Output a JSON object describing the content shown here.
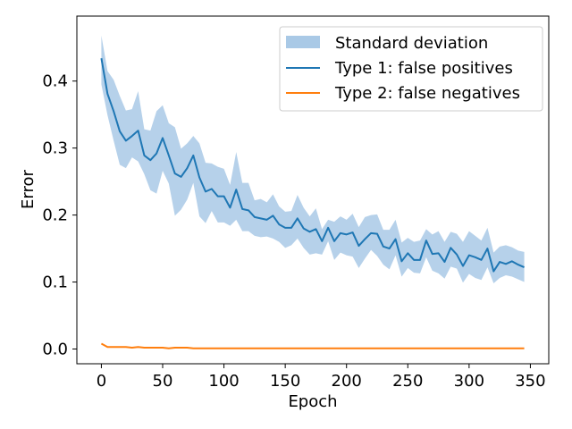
{
  "chart_data": {
    "type": "line",
    "xlabel": "Epoch",
    "ylabel": "Error",
    "xlim": [
      -20,
      365
    ],
    "ylim": [
      -0.022,
      0.497
    ],
    "xticks": [
      0,
      50,
      100,
      150,
      200,
      250,
      300,
      350
    ],
    "yticks": [
      0.0,
      0.1,
      0.2,
      0.3,
      0.4
    ],
    "grid": false,
    "legend_position": "top-right",
    "legend": {
      "band": "Standard deviation",
      "type1": "Type 1: false positives",
      "type2": "Type 2: false negatives"
    },
    "colors": {
      "type1": "#1f77b4",
      "type2": "#ff7f0e",
      "band": "#a9c9e6"
    },
    "x": [
      0,
      5,
      10,
      15,
      20,
      25,
      30,
      35,
      40,
      45,
      50,
      55,
      60,
      65,
      70,
      75,
      80,
      85,
      90,
      95,
      100,
      105,
      110,
      115,
      120,
      125,
      130,
      135,
      140,
      145,
      150,
      155,
      160,
      165,
      170,
      175,
      180,
      185,
      190,
      195,
      200,
      205,
      210,
      215,
      220,
      225,
      230,
      235,
      240,
      245,
      250,
      255,
      260,
      265,
      270,
      275,
      280,
      285,
      290,
      295,
      300,
      305,
      310,
      315,
      320,
      325,
      330,
      335,
      340,
      345
    ],
    "series": [
      {
        "name": "Type 1: false positives",
        "values": [
          0.434,
          0.381,
          0.355,
          0.325,
          0.311,
          0.318,
          0.326,
          0.289,
          0.282,
          0.292,
          0.315,
          0.289,
          0.262,
          0.257,
          0.27,
          0.289,
          0.256,
          0.235,
          0.239,
          0.228,
          0.228,
          0.211,
          0.238,
          0.209,
          0.207,
          0.197,
          0.195,
          0.193,
          0.199,
          0.186,
          0.181,
          0.181,
          0.195,
          0.18,
          0.175,
          0.179,
          0.161,
          0.181,
          0.161,
          0.173,
          0.171,
          0.174,
          0.154,
          0.164,
          0.173,
          0.172,
          0.153,
          0.15,
          0.164,
          0.131,
          0.143,
          0.133,
          0.133,
          0.162,
          0.142,
          0.143,
          0.13,
          0.151,
          0.141,
          0.124,
          0.14,
          0.137,
          0.133,
          0.15,
          0.116,
          0.13,
          0.127,
          0.131,
          0.126,
          0.122
        ]
      },
      {
        "name": "Type 2: false negatives",
        "values": [
          0.008,
          0.003,
          0.003,
          0.003,
          0.003,
          0.002,
          0.003,
          0.002,
          0.002,
          0.002,
          0.002,
          0.001,
          0.002,
          0.002,
          0.002,
          0.001,
          0.001,
          0.001,
          0.001,
          0.001,
          0.001,
          0.001,
          0.001,
          0.001,
          0.001,
          0.001,
          0.001,
          0.001,
          0.001,
          0.001,
          0.001,
          0.001,
          0.001,
          0.001,
          0.001,
          0.001,
          0.001,
          0.001,
          0.001,
          0.001,
          0.001,
          0.001,
          0.001,
          0.001,
          0.001,
          0.001,
          0.001,
          0.001,
          0.001,
          0.001,
          0.001,
          0.001,
          0.001,
          0.001,
          0.001,
          0.001,
          0.001,
          0.001,
          0.001,
          0.001,
          0.001,
          0.001,
          0.001,
          0.001,
          0.001,
          0.001,
          0.001,
          0.001,
          0.001,
          0.001
        ]
      }
    ],
    "band": {
      "name": "Standard deviation",
      "upper": [
        0.468,
        0.415,
        0.402,
        0.378,
        0.356,
        0.358,
        0.385,
        0.328,
        0.326,
        0.355,
        0.364,
        0.337,
        0.331,
        0.299,
        0.307,
        0.318,
        0.307,
        0.278,
        0.277,
        0.272,
        0.269,
        0.245,
        0.294,
        0.248,
        0.248,
        0.222,
        0.224,
        0.219,
        0.231,
        0.213,
        0.205,
        0.206,
        0.23,
        0.211,
        0.198,
        0.21,
        0.179,
        0.193,
        0.19,
        0.198,
        0.193,
        0.202,
        0.182,
        0.197,
        0.2,
        0.201,
        0.178,
        0.178,
        0.193,
        0.159,
        0.166,
        0.16,
        0.162,
        0.179,
        0.171,
        0.176,
        0.16,
        0.175,
        0.172,
        0.16,
        0.176,
        0.169,
        0.162,
        0.181,
        0.144,
        0.153,
        0.155,
        0.152,
        0.147,
        0.145
      ],
      "lower": [
        0.395,
        0.349,
        0.311,
        0.275,
        0.27,
        0.286,
        0.28,
        0.261,
        0.237,
        0.232,
        0.266,
        0.247,
        0.199,
        0.208,
        0.223,
        0.248,
        0.198,
        0.188,
        0.206,
        0.189,
        0.189,
        0.184,
        0.193,
        0.176,
        0.176,
        0.169,
        0.167,
        0.168,
        0.165,
        0.16,
        0.151,
        0.155,
        0.165,
        0.151,
        0.141,
        0.143,
        0.141,
        0.161,
        0.133,
        0.144,
        0.14,
        0.138,
        0.121,
        0.135,
        0.148,
        0.139,
        0.126,
        0.119,
        0.14,
        0.108,
        0.121,
        0.114,
        0.113,
        0.137,
        0.117,
        0.113,
        0.105,
        0.123,
        0.12,
        0.099,
        0.112,
        0.106,
        0.103,
        0.122,
        0.098,
        0.106,
        0.11,
        0.108,
        0.104,
        0.1
      ]
    }
  }
}
